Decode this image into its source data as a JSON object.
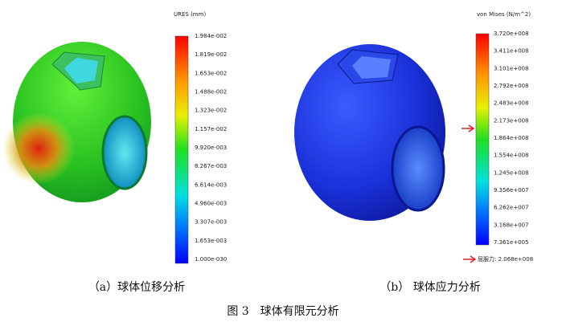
{
  "left_panel": {
    "legend_title": "URES (mm)",
    "legend_ticks": [
      "1.984e-002",
      "1.819e-002",
      "1.653e-002",
      "1.488e-002",
      "1.323e-002",
      "1.157e-002",
      "9.920e-003",
      "8.267e-003",
      "6.614e-003",
      "4.960e-003",
      "3.307e-003",
      "1.653e-003",
      "1.000e-030"
    ],
    "caption": "（a）球体位移分析"
  },
  "right_panel": {
    "legend_title": "von Mises (N/m^2)",
    "legend_ticks": [
      "3.720e+008",
      "3.411e+008",
      "3.101e+008",
      "2.792e+008",
      "2.483e+008",
      "2.173e+008",
      "1.864e+008",
      "1.554e+008",
      "1.245e+008",
      "9.356e+007",
      "6.262e+007",
      "3.168e+007",
      "7.361e+005"
    ],
    "yield_label": "屈服力: 2.068e+008",
    "caption": "（b）  球体应力分析"
  },
  "figure_caption": "图 3　球体有限元分析"
}
